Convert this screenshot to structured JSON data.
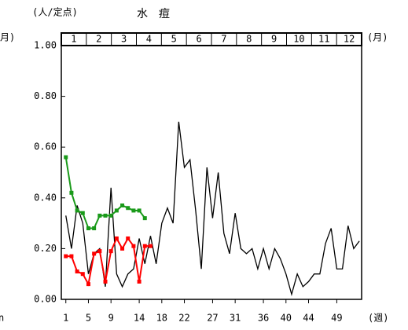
{
  "chart_data": {
    "type": "line",
    "unit_label": "(人/定点)",
    "title": "水　痘",
    "left_month_label": "月)",
    "right_month_label": "(月)",
    "x_unit_label": "(週)",
    "corner_label": "n",
    "months": [
      "1",
      "2",
      "3",
      "4",
      "5",
      "6",
      "7",
      "8",
      "9",
      "10",
      "11",
      "12"
    ],
    "x": [
      1,
      2,
      3,
      4,
      5,
      6,
      7,
      8,
      9,
      10,
      11,
      12,
      13,
      14,
      15,
      16,
      17,
      18,
      19,
      20,
      21,
      22,
      23,
      24,
      25,
      26,
      27,
      28,
      29,
      30,
      31,
      32,
      33,
      34,
      35,
      36,
      37,
      38,
      39,
      40,
      41,
      42,
      43,
      44,
      45,
      46,
      47,
      48,
      49,
      50,
      51,
      52,
      53
    ],
    "xlim": [
      0.2,
      53.4
    ],
    "xticks": [
      1,
      5,
      9,
      14,
      18,
      22,
      27,
      31,
      36,
      40,
      44,
      49
    ],
    "ylim": [
      0,
      1
    ],
    "yticks": [
      {
        "value": 0,
        "label": "0.00"
      },
      {
        "value": 0.2,
        "label": "0.20"
      },
      {
        "value": 0.4,
        "label": "0.40"
      },
      {
        "value": 0.6,
        "label": "0.60"
      },
      {
        "value": 0.8,
        "label": "0.80"
      },
      {
        "value": 1,
        "label": "1.00"
      }
    ],
    "series": [
      {
        "color": "#000000",
        "markers": false,
        "values": [
          0.33,
          0.2,
          0.37,
          0.3,
          0.1,
          0.18,
          0.2,
          0.05,
          0.44,
          0.1,
          0.05,
          0.1,
          0.12,
          0.24,
          0.14,
          0.25,
          0.14,
          0.3,
          0.36,
          0.3,
          0.7,
          0.52,
          0.55,
          0.35,
          0.12,
          0.52,
          0.32,
          0.5,
          0.26,
          0.18,
          0.34,
          0.2,
          0.18,
          0.2,
          0.12,
          0.2,
          0.12,
          0.2,
          0.16,
          0.1,
          0.02,
          0.1,
          0.05,
          0.07,
          0.1,
          0.1,
          0.22,
          0.28,
          0.12,
          0.12,
          0.29,
          0.2,
          0.23
        ]
      },
      {
        "color": "#ff0000",
        "markers": true,
        "values": [
          0.17,
          0.17,
          0.11,
          0.1,
          0.06,
          0.18,
          0.19,
          0.07,
          0.19,
          0.24,
          0.2,
          0.24,
          0.21,
          0.07,
          0.21,
          0.21,
          null,
          null,
          null,
          null,
          null,
          null,
          null,
          null,
          null,
          null,
          null,
          null,
          null,
          null,
          null,
          null,
          null,
          null,
          null,
          null,
          null,
          null,
          null,
          null,
          null,
          null,
          null,
          null,
          null,
          null,
          null,
          null,
          null,
          null,
          null,
          null,
          null
        ]
      },
      {
        "color": "#1a9a1a",
        "markers": true,
        "values": [
          0.56,
          0.42,
          0.35,
          0.34,
          0.28,
          0.28,
          0.33,
          0.33,
          0.33,
          0.35,
          0.37,
          0.36,
          0.35,
          0.35,
          0.32,
          null,
          null,
          null,
          null,
          null,
          null,
          null,
          null,
          null,
          null,
          null,
          null,
          null,
          null,
          null,
          null,
          null,
          null,
          null,
          null,
          null,
          null,
          null,
          null,
          null,
          null,
          null,
          null,
          null,
          null,
          null,
          null,
          null,
          null,
          null,
          null,
          null,
          null
        ]
      }
    ]
  }
}
